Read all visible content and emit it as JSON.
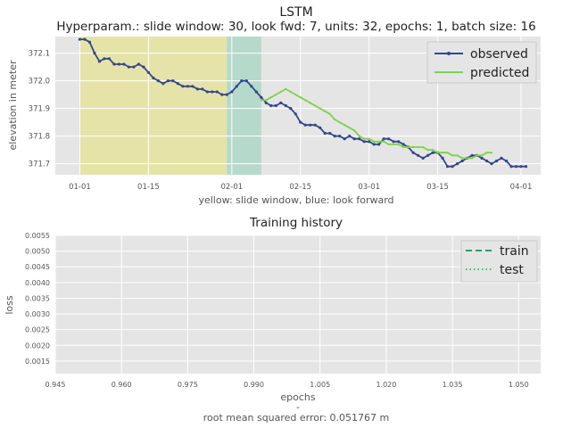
{
  "colors": {
    "plot_bg": "#e5e5e5",
    "grid": "#ffffff",
    "observed": "#34478a",
    "predicted": "#7fd14d",
    "slide_window": "#e6e3a8",
    "look_forward": "#b5dacb",
    "train": "#2a9d72",
    "test": "#3cc07a",
    "text": "#222222",
    "tick_text": "#555555"
  },
  "chart_data": [
    {
      "type": "line",
      "title": "LSTM",
      "subtitle": "Hyperparam.: slide window: 30, look fwd: 7, units: 32, epochs: 1, batch size: 16",
      "xlabel": "yellow: slide window, blue: look forward",
      "ylabel": "elevation in meter",
      "x_ticks": [
        "01-01",
        "01-15",
        "02-01",
        "02-15",
        "03-01",
        "03-15",
        "04-01"
      ],
      "x_tick_days": [
        0,
        14,
        31,
        45,
        59,
        73,
        90
      ],
      "xlim_days": [
        -5,
        94
      ],
      "ylim": [
        371.66,
        372.16
      ],
      "y_ticks": [
        "372.1",
        "372.0",
        "371.9",
        "371.8",
        "371.7"
      ],
      "y_tick_values": [
        372.1,
        372.0,
        371.9,
        371.8,
        371.7
      ],
      "grid": true,
      "legend_position": "top-right",
      "spans": [
        {
          "name": "slide window",
          "color_key": "slide_window",
          "from_day": 0,
          "to_day": 30
        },
        {
          "name": "look forward",
          "color_key": "look_forward",
          "from_day": 30,
          "to_day": 37
        }
      ],
      "series": [
        {
          "name": "observed",
          "color_key": "observed",
          "marker": true,
          "x_start_day": 0,
          "values": [
            372.15,
            372.15,
            372.14,
            372.1,
            372.07,
            372.08,
            372.08,
            372.06,
            372.06,
            372.06,
            372.05,
            372.05,
            372.06,
            372.05,
            372.03,
            372.01,
            372.0,
            371.99,
            372.0,
            372.0,
            371.99,
            371.98,
            371.98,
            371.98,
            371.97,
            371.97,
            371.96,
            371.96,
            371.96,
            371.95,
            371.95,
            371.96,
            371.98,
            372.0,
            372.0,
            371.98,
            371.96,
            371.94,
            371.92,
            371.91,
            371.91,
            371.92,
            371.91,
            371.9,
            371.88,
            371.85,
            371.84,
            371.84,
            371.84,
            371.83,
            371.81,
            371.81,
            371.8,
            371.8,
            371.79,
            371.8,
            371.79,
            371.79,
            371.78,
            371.78,
            371.77,
            371.77,
            371.79,
            371.79,
            371.78,
            371.78,
            371.77,
            371.76,
            371.74,
            371.73,
            371.72,
            371.73,
            371.74,
            371.74,
            371.72,
            371.69,
            371.69,
            371.7,
            371.71,
            371.72,
            371.73,
            371.73,
            371.72,
            371.71,
            371.7,
            371.71,
            371.72,
            371.71,
            371.69,
            371.69,
            371.69,
            371.69
          ]
        },
        {
          "name": "predicted",
          "color_key": "predicted",
          "marker": false,
          "x_start_day": 37,
          "values": [
            371.93,
            371.93,
            371.94,
            371.95,
            371.96,
            371.97,
            371.96,
            371.95,
            371.94,
            371.93,
            371.92,
            371.91,
            371.9,
            371.89,
            371.88,
            371.86,
            371.85,
            371.84,
            371.83,
            371.82,
            371.8,
            371.79,
            371.79,
            371.78,
            371.78,
            371.78,
            371.77,
            371.77,
            371.77,
            371.76,
            371.76,
            371.76,
            371.76,
            371.76,
            371.75,
            371.75,
            371.74,
            371.74,
            371.74,
            371.73,
            371.73,
            371.72,
            371.72,
            371.72,
            371.73,
            371.73,
            371.74,
            371.74
          ]
        }
      ]
    },
    {
      "type": "line",
      "title": "Training history",
      "xlabel": "epochs",
      "ylabel": "loss",
      "xlim": [
        0.945,
        1.055
      ],
      "ylim": [
        0.0011,
        0.0055
      ],
      "x_ticks": [
        "0.945",
        "0.960",
        "0.975",
        "0.990",
        "1.005",
        "1.020",
        "1.035",
        "1.050"
      ],
      "x_tick_values": [
        0.945,
        0.96,
        0.975,
        0.99,
        1.005,
        1.02,
        1.035,
        1.05
      ],
      "y_ticks": [
        "0.0055",
        "0.0050",
        "0.0045",
        "0.0040",
        "0.0035",
        "0.0030",
        "0.0025",
        "0.0020",
        "0.0015"
      ],
      "y_tick_values": [
        0.0055,
        0.005,
        0.0045,
        0.004,
        0.0035,
        0.003,
        0.0025,
        0.002,
        0.0015
      ],
      "grid": true,
      "legend_position": "top-right",
      "series": [
        {
          "name": "train",
          "color_key": "train",
          "dash": "dashed",
          "values": []
        },
        {
          "name": "test",
          "color_key": "test",
          "dash": "dotted",
          "values": []
        }
      ],
      "footer_dash": "-",
      "footer": "root mean squared error: 0.051767 m"
    }
  ]
}
